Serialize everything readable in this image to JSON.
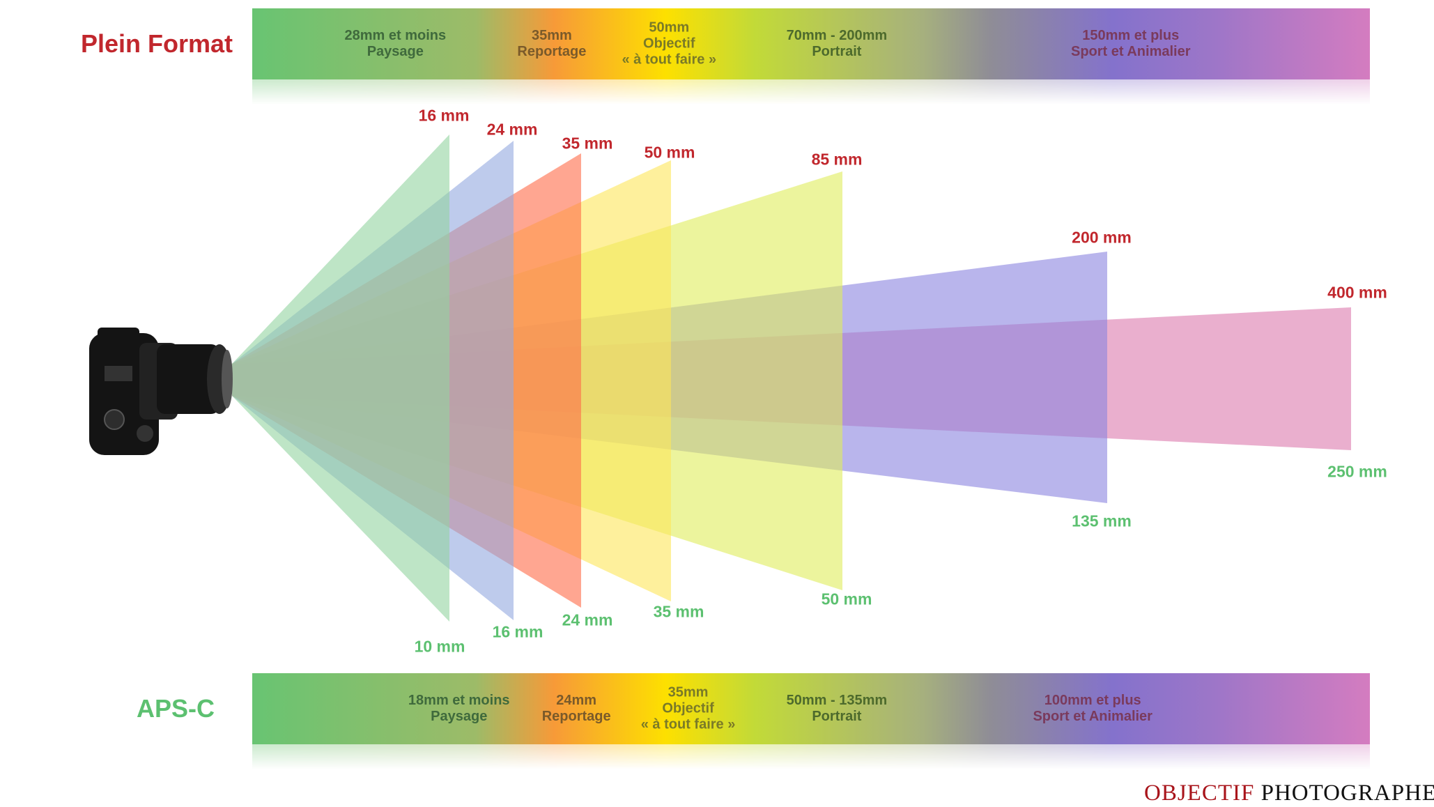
{
  "full_frame": {
    "title": "Plein Format",
    "bands": [
      {
        "lines": [
          "28mm et moins",
          "Paysage"
        ],
        "color": "#3f6a3c",
        "pos": 0.128
      },
      {
        "lines": [
          "35mm",
          "Reportage"
        ],
        "color": "#7a5a2a",
        "pos": 0.268
      },
      {
        "lines": [
          "50mm",
          "Objectif",
          "« à tout faire »"
        ],
        "color": "#7a7a28",
        "pos": 0.373
      },
      {
        "lines": [
          "70mm - 200mm",
          "Portrait"
        ],
        "color": "#4d6a2c",
        "pos": 0.523
      },
      {
        "lines": [
          "150mm et plus",
          "Sport et Animalier"
        ],
        "color": "#7a3a5c",
        "pos": 0.786
      }
    ]
  },
  "apsc": {
    "title": "APS-C",
    "bands": [
      {
        "lines": [
          "18mm et moins",
          "Paysage"
        ],
        "color": "#3f6a3c",
        "pos": 0.185
      },
      {
        "lines": [
          "24mm",
          "Reportage"
        ],
        "color": "#7a5a2a",
        "pos": 0.29
      },
      {
        "lines": [
          "35mm",
          "Objectif",
          "« à tout faire »"
        ],
        "color": "#7a7a28",
        "pos": 0.39
      },
      {
        "lines": [
          "50mm - 135mm",
          "Portrait"
        ],
        "color": "#4d6a2c",
        "pos": 0.523
      },
      {
        "lines": [
          "100mm et plus",
          "Sport et Animalier"
        ],
        "color": "#7a3a5c",
        "pos": 0.752
      }
    ]
  },
  "cones": [
    {
      "full_frame": "400 mm",
      "apsc": "250 mm",
      "color": "#dc7aae"
    },
    {
      "full_frame": "200 mm",
      "apsc": "135 mm",
      "color": "#8a84e0"
    },
    {
      "full_frame": "85 mm",
      "apsc": "50 mm",
      "color": "#dfec5c"
    },
    {
      "full_frame": "50 mm",
      "apsc": "35 mm",
      "color": "#fde65a"
    },
    {
      "full_frame": "35 mm",
      "apsc": "24 mm",
      "color": "#ff6a48"
    },
    {
      "full_frame": "24 mm",
      "apsc": "16 mm",
      "color": "#92a8e0"
    },
    {
      "full_frame": "16 mm",
      "apsc": "10 mm",
      "color": "#92d4a0"
    }
  ],
  "logo": {
    "part1": "OBJECTIF",
    "part2": "PHOTOGRAPHE"
  }
}
